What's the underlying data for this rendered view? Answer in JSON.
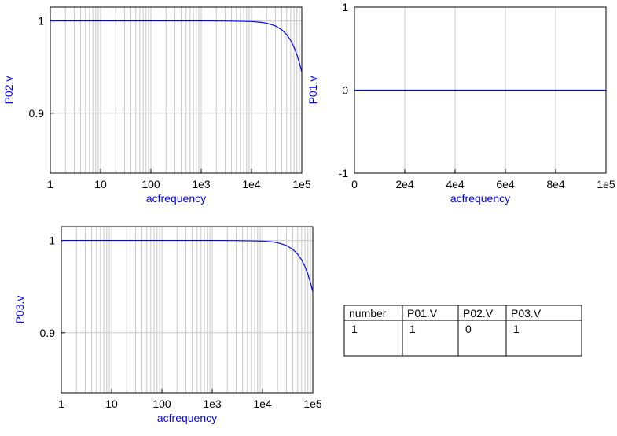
{
  "colors": {
    "series": "#0000ff",
    "label": "#0000ff",
    "grid": "#c8c8c8",
    "frame": "#000000"
  },
  "chart_data": [
    {
      "type": "line",
      "ylabel": "P02.v",
      "xlabel": "acfrequency",
      "x_scale": "log",
      "xlim": [
        1,
        100000
      ],
      "ylim": [
        0.835,
        1.015
      ],
      "x_ticks": [
        1,
        10,
        100,
        1000,
        10000,
        100000
      ],
      "x_tick_labels": [
        "1",
        "10",
        "100",
        "1e3",
        "1e4",
        "1e5"
      ],
      "y_ticks": [
        0.9,
        1
      ],
      "y_tick_labels": [
        "0.9",
        "1"
      ],
      "grid": true,
      "series": [
        {
          "x": [
            1,
            10,
            100,
            1000,
            3000,
            10000,
            15000,
            20000,
            30000,
            40000,
            50000,
            60000,
            70000,
            80000,
            90000,
            100000
          ],
          "y": [
            1.0,
            1.0,
            1.0,
            1.0,
            0.9999,
            0.9994,
            0.9986,
            0.9976,
            0.9946,
            0.9904,
            0.9852,
            0.9789,
            0.9716,
            0.9634,
            0.9543,
            0.9445
          ]
        }
      ]
    },
    {
      "type": "line",
      "ylabel": "P01.v",
      "xlabel": "acfrequency",
      "x_scale": "linear",
      "xlim": [
        0,
        100000
      ],
      "ylim": [
        -1,
        1
      ],
      "x_ticks": [
        0,
        20000,
        40000,
        60000,
        80000,
        100000
      ],
      "x_tick_labels": [
        "0",
        "2e4",
        "4e4",
        "6e4",
        "8e4",
        "1e5"
      ],
      "y_ticks": [
        -1,
        0,
        1
      ],
      "y_tick_labels": [
        "-1",
        "0",
        "1"
      ],
      "grid": true,
      "series": [
        {
          "x": [
            0,
            100000
          ],
          "y": [
            0,
            0
          ]
        }
      ]
    },
    {
      "type": "line",
      "ylabel": "P03.v",
      "xlabel": "acfrequency",
      "x_scale": "log",
      "xlim": [
        1,
        100000
      ],
      "ylim": [
        0.835,
        1.015
      ],
      "x_ticks": [
        1,
        10,
        100,
        1000,
        10000,
        100000
      ],
      "x_tick_labels": [
        "1",
        "10",
        "100",
        "1e3",
        "1e4",
        "1e5"
      ],
      "y_ticks": [
        0.9,
        1
      ],
      "y_tick_labels": [
        "0.9",
        "1"
      ],
      "grid": true,
      "series": [
        {
          "x": [
            1,
            10,
            100,
            1000,
            3000,
            10000,
            15000,
            20000,
            30000,
            40000,
            50000,
            60000,
            70000,
            80000,
            90000,
            100000
          ],
          "y": [
            1.0,
            1.0,
            1.0,
            1.0,
            0.9999,
            0.9994,
            0.9986,
            0.9976,
            0.9946,
            0.9904,
            0.9852,
            0.9789,
            0.9716,
            0.9634,
            0.9543,
            0.9445
          ]
        }
      ]
    },
    {
      "type": "table",
      "columns": [
        "number",
        "P01.V",
        "P02.V",
        "P03.V"
      ],
      "rows": [
        [
          "1",
          "1",
          "0",
          "1"
        ]
      ]
    }
  ]
}
